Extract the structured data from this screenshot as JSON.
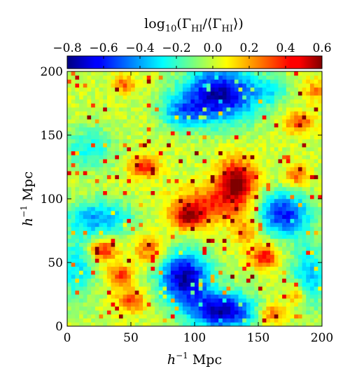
{
  "chart_data": {
    "type": "heatmap",
    "colorbar": {
      "label_parts": {
        "prefix": "log",
        "sub": "10",
        "open": "(Γ",
        "sub2": "HI",
        "mid": "/⟨Γ",
        "sub3": "HI",
        "close": "⟩)"
      },
      "range": [
        -0.8,
        0.6
      ],
      "ticks": [
        -0.8,
        -0.6,
        -0.4,
        -0.2,
        0.0,
        0.2,
        0.4,
        0.6
      ],
      "tick_labels": [
        "−0.8",
        "−0.6",
        "−0.4",
        "−0.2",
        "0.0",
        "0.2",
        "0.4",
        "0.6"
      ],
      "colormap": "jet",
      "placement": "top"
    },
    "xaxis": {
      "label_base": "h",
      "label_sup": "−1",
      "label_unit": " Mpc",
      "range": [
        0,
        200
      ],
      "ticks": [
        0,
        50,
        100,
        150,
        200
      ],
      "tick_labels": [
        "0",
        "50",
        "100",
        "150",
        "200"
      ]
    },
    "yaxis": {
      "label_base": "h",
      "label_sup": "−1",
      "label_unit": " Mpc",
      "range": [
        0,
        200
      ],
      "ticks": [
        0,
        50,
        100,
        150,
        200
      ],
      "tick_labels": [
        "0",
        "50",
        "100",
        "150",
        "200"
      ]
    },
    "grid": false,
    "resolution": [
      64,
      64
    ],
    "background_level": 0.0,
    "features": [
      {
        "kind": "low",
        "x": 120,
        "y": 182,
        "sx": 20,
        "sy": 15,
        "amp": -0.75
      },
      {
        "kind": "low",
        "x": 90,
        "y": 168,
        "sx": 12,
        "sy": 9,
        "amp": -0.35
      },
      {
        "kind": "low",
        "x": 92,
        "y": 38,
        "sx": 14,
        "sy": 14,
        "amp": -0.75
      },
      {
        "kind": "low",
        "x": 122,
        "y": 12,
        "sx": 18,
        "sy": 10,
        "amp": -0.75
      },
      {
        "kind": "low",
        "x": 170,
        "y": 88,
        "sx": 14,
        "sy": 12,
        "amp": -0.6
      },
      {
        "kind": "low",
        "x": 25,
        "y": 85,
        "sx": 18,
        "sy": 10,
        "amp": -0.4
      },
      {
        "kind": "low",
        "x": 8,
        "y": 45,
        "sx": 10,
        "sy": 18,
        "amp": -0.3
      },
      {
        "kind": "low",
        "x": 190,
        "y": 40,
        "sx": 10,
        "sy": 18,
        "amp": -0.35
      },
      {
        "kind": "low",
        "x": 18,
        "y": 140,
        "sx": 14,
        "sy": 12,
        "amp": -0.25
      },
      {
        "kind": "low",
        "x": 160,
        "y": 185,
        "sx": 10,
        "sy": 8,
        "amp": -0.2
      },
      {
        "kind": "high",
        "x": 133,
        "y": 113,
        "sx": 10,
        "sy": 12,
        "amp": 0.65
      },
      {
        "kind": "high",
        "x": 108,
        "y": 95,
        "sx": 18,
        "sy": 10,
        "amp": 0.35
      },
      {
        "kind": "high",
        "x": 95,
        "y": 85,
        "sx": 8,
        "sy": 6,
        "amp": 0.45
      },
      {
        "kind": "high",
        "x": 60,
        "y": 125,
        "sx": 8,
        "sy": 6,
        "amp": 0.4
      },
      {
        "kind": "high",
        "x": 28,
        "y": 60,
        "sx": 8,
        "sy": 6,
        "amp": 0.4
      },
      {
        "kind": "high",
        "x": 42,
        "y": 40,
        "sx": 7,
        "sy": 6,
        "amp": 0.35
      },
      {
        "kind": "high",
        "x": 50,
        "y": 20,
        "sx": 8,
        "sy": 6,
        "amp": 0.35
      },
      {
        "kind": "high",
        "x": 155,
        "y": 55,
        "sx": 7,
        "sy": 6,
        "amp": 0.45
      },
      {
        "kind": "high",
        "x": 182,
        "y": 160,
        "sx": 8,
        "sy": 6,
        "amp": 0.35
      },
      {
        "kind": "high",
        "x": 180,
        "y": 118,
        "sx": 6,
        "sy": 6,
        "amp": 0.3
      },
      {
        "kind": "high",
        "x": 65,
        "y": 60,
        "sx": 8,
        "sy": 8,
        "amp": 0.3
      },
      {
        "kind": "high",
        "x": 45,
        "y": 190,
        "sx": 6,
        "sy": 5,
        "amp": 0.3
      },
      {
        "kind": "high",
        "x": 160,
        "y": 10,
        "sx": 8,
        "sy": 6,
        "amp": 0.3
      },
      {
        "kind": "high",
        "x": 195,
        "y": 185,
        "sx": 6,
        "sy": 6,
        "amp": 0.25
      },
      {
        "kind": "high",
        "x": 140,
        "y": 75,
        "sx": 8,
        "sy": 8,
        "amp": 0.25
      },
      {
        "kind": "high",
        "x": 180,
        "y": 25,
        "sx": 6,
        "sy": 6,
        "amp": 0.3
      }
    ]
  }
}
